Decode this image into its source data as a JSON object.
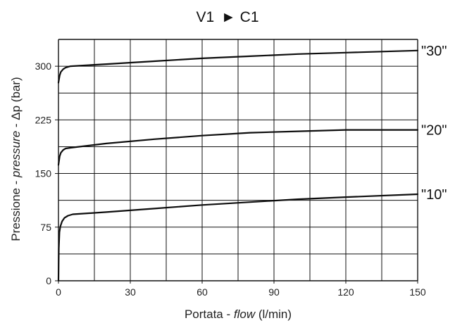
{
  "chart_data": {
    "type": "line",
    "title": {
      "left": "V1",
      "arrow": "►",
      "right": "C1"
    },
    "xlabel": {
      "prefix": "Portata - ",
      "italic": "flow",
      "suffix": " (l/min)"
    },
    "ylabel": {
      "prefix": "Pressione - ",
      "italic": "pressure",
      "suffix": " - Δp (bar)"
    },
    "xlim": [
      0,
      150
    ],
    "ylim": [
      0,
      337.5
    ],
    "xticks": [
      0,
      30,
      60,
      90,
      120,
      150
    ],
    "yticks": [
      0,
      75,
      150,
      225,
      300
    ],
    "xgrid": [
      0,
      15,
      30,
      45,
      60,
      75,
      90,
      105,
      120,
      135,
      150
    ],
    "ygrid": [
      0,
      37.5,
      75,
      112.5,
      150,
      187.5,
      225,
      262.5,
      300,
      337.5
    ],
    "grid": true,
    "legend": "right-of-curves",
    "series": [
      {
        "name": "\"30\"",
        "points": [
          [
            0,
            277
          ],
          [
            0.5,
            287
          ],
          [
            1,
            292
          ],
          [
            2,
            296
          ],
          [
            3,
            298
          ],
          [
            5,
            300
          ],
          [
            20,
            303
          ],
          [
            40,
            307
          ],
          [
            60,
            311
          ],
          [
            80,
            314
          ],
          [
            100,
            317
          ],
          [
            120,
            319
          ],
          [
            150,
            322
          ]
        ]
      },
      {
        "name": "\"20\"",
        "points": [
          [
            0,
            162
          ],
          [
            0.5,
            174
          ],
          [
            1,
            179
          ],
          [
            2,
            183
          ],
          [
            3,
            185
          ],
          [
            5,
            186
          ],
          [
            20,
            192
          ],
          [
            40,
            198
          ],
          [
            60,
            203
          ],
          [
            80,
            207
          ],
          [
            100,
            209
          ],
          [
            120,
            211
          ],
          [
            150,
            211
          ]
        ]
      },
      {
        "name": "\"10\"",
        "points": [
          [
            0,
            0
          ],
          [
            0.15,
            45
          ],
          [
            0.4,
            68
          ],
          [
            0.8,
            76
          ],
          [
            1.5,
            83
          ],
          [
            2.5,
            88
          ],
          [
            4,
            91
          ],
          [
            6,
            93
          ],
          [
            20,
            96
          ],
          [
            40,
            101
          ],
          [
            60,
            106
          ],
          [
            80,
            110
          ],
          [
            100,
            114
          ],
          [
            120,
            117
          ],
          [
            150,
            121
          ]
        ]
      }
    ]
  }
}
